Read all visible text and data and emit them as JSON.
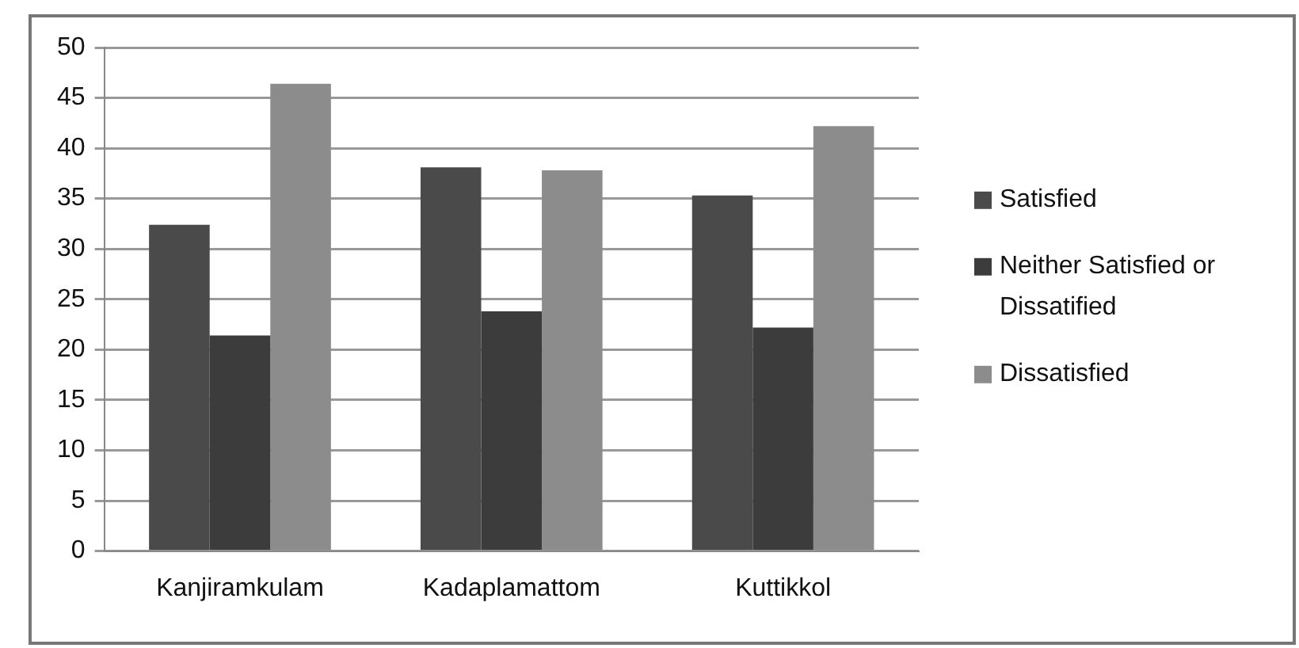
{
  "chart_data": {
    "type": "bar",
    "categories": [
      "Kanjiramkulam",
      "Kadaplamattom",
      "Kuttikkol"
    ],
    "series": [
      {
        "name": "Satisfied",
        "color": "#4a4a4a",
        "values": [
          32.4,
          38.1,
          35.3
        ]
      },
      {
        "name": "Neither Satisfied or Dissatified",
        "color": "#3c3c3c",
        "values": [
          21.4,
          23.8,
          22.2
        ]
      },
      {
        "name": "Dissatisfied",
        "color": "#8c8c8c",
        "values": [
          46.4,
          37.8,
          42.2
        ]
      }
    ],
    "ylim": [
      0,
      50
    ],
    "yticks": [
      0,
      5,
      10,
      15,
      20,
      25,
      30,
      35,
      40,
      45,
      50
    ],
    "grid": "y",
    "legend": "right"
  }
}
